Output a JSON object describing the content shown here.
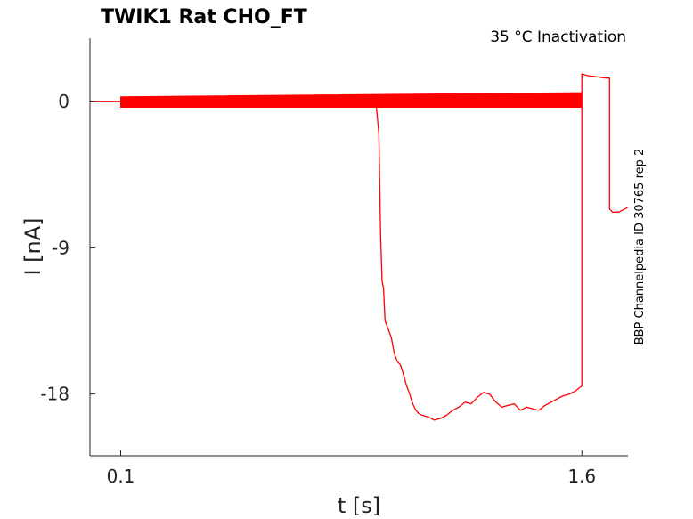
{
  "chart_data": {
    "type": "line",
    "title": "TWIK1  Rat  CHO_FT",
    "annotation": "35 °C  Inactivation",
    "side_label": "BBP Channelpedia ID 30765 rep 2",
    "xlabel": "t [s]",
    "ylabel": "I [nA]",
    "xlim": [
      0.0,
      1.75
    ],
    "ylim": [
      -21.8,
      3.9
    ],
    "x_ticks": [
      0.1,
      1.6
    ],
    "x_tick_labels": [
      "0.1",
      "1.6"
    ],
    "y_ticks": [
      0,
      -9,
      -18
    ],
    "y_tick_labels": [
      "0",
      "-9",
      "-18"
    ],
    "grid": false,
    "line_color": "#ff0000",
    "band": {
      "x_start": 0.1,
      "x_end": 1.6,
      "upper_start": 0.3,
      "upper_end": 0.55,
      "lower_start": -0.35,
      "lower_end": -0.35
    },
    "series": [
      {
        "x": [
          0.0,
          0.1,
          0.2,
          0.4,
          0.6,
          0.8,
          0.93,
          0.94,
          0.945,
          0.95,
          0.955,
          0.96,
          0.97,
          0.98,
          0.99,
          1.0,
          1.01,
          1.02,
          1.03,
          1.04,
          1.05,
          1.06,
          1.07,
          1.08,
          1.1,
          1.12,
          1.14,
          1.16,
          1.18,
          1.2,
          1.22,
          1.24,
          1.26,
          1.28,
          1.3,
          1.32,
          1.34,
          1.36,
          1.38,
          1.4,
          1.42,
          1.44,
          1.46,
          1.48,
          1.5,
          1.52,
          1.54,
          1.56,
          1.58,
          1.6,
          1.6,
          1.62,
          1.64,
          1.66,
          1.68,
          1.69,
          1.69,
          1.7,
          1.72,
          1.75
        ],
        "y": [
          0.0,
          0.0,
          0.0,
          0.0,
          0.0,
          0.0,
          0.0,
          -2.0,
          -8.0,
          -11.0,
          -11.5,
          -13.5,
          -14.0,
          -14.5,
          -15.5,
          -16.0,
          -16.2,
          -16.8,
          -17.5,
          -18.0,
          -18.6,
          -19.0,
          -19.2,
          -19.3,
          -19.4,
          -19.6,
          -19.5,
          -19.3,
          -19.0,
          -18.8,
          -18.5,
          -18.6,
          -18.2,
          -17.9,
          -18.0,
          -18.5,
          -18.8,
          -18.7,
          -18.6,
          -19.0,
          -18.8,
          -18.9,
          -19.0,
          -18.7,
          -18.5,
          -18.3,
          -18.1,
          -18.0,
          -17.8,
          -17.5,
          1.7,
          1.6,
          1.55,
          1.5,
          1.45,
          1.45,
          -6.6,
          -6.8,
          -6.8,
          -6.5
        ]
      }
    ]
  }
}
